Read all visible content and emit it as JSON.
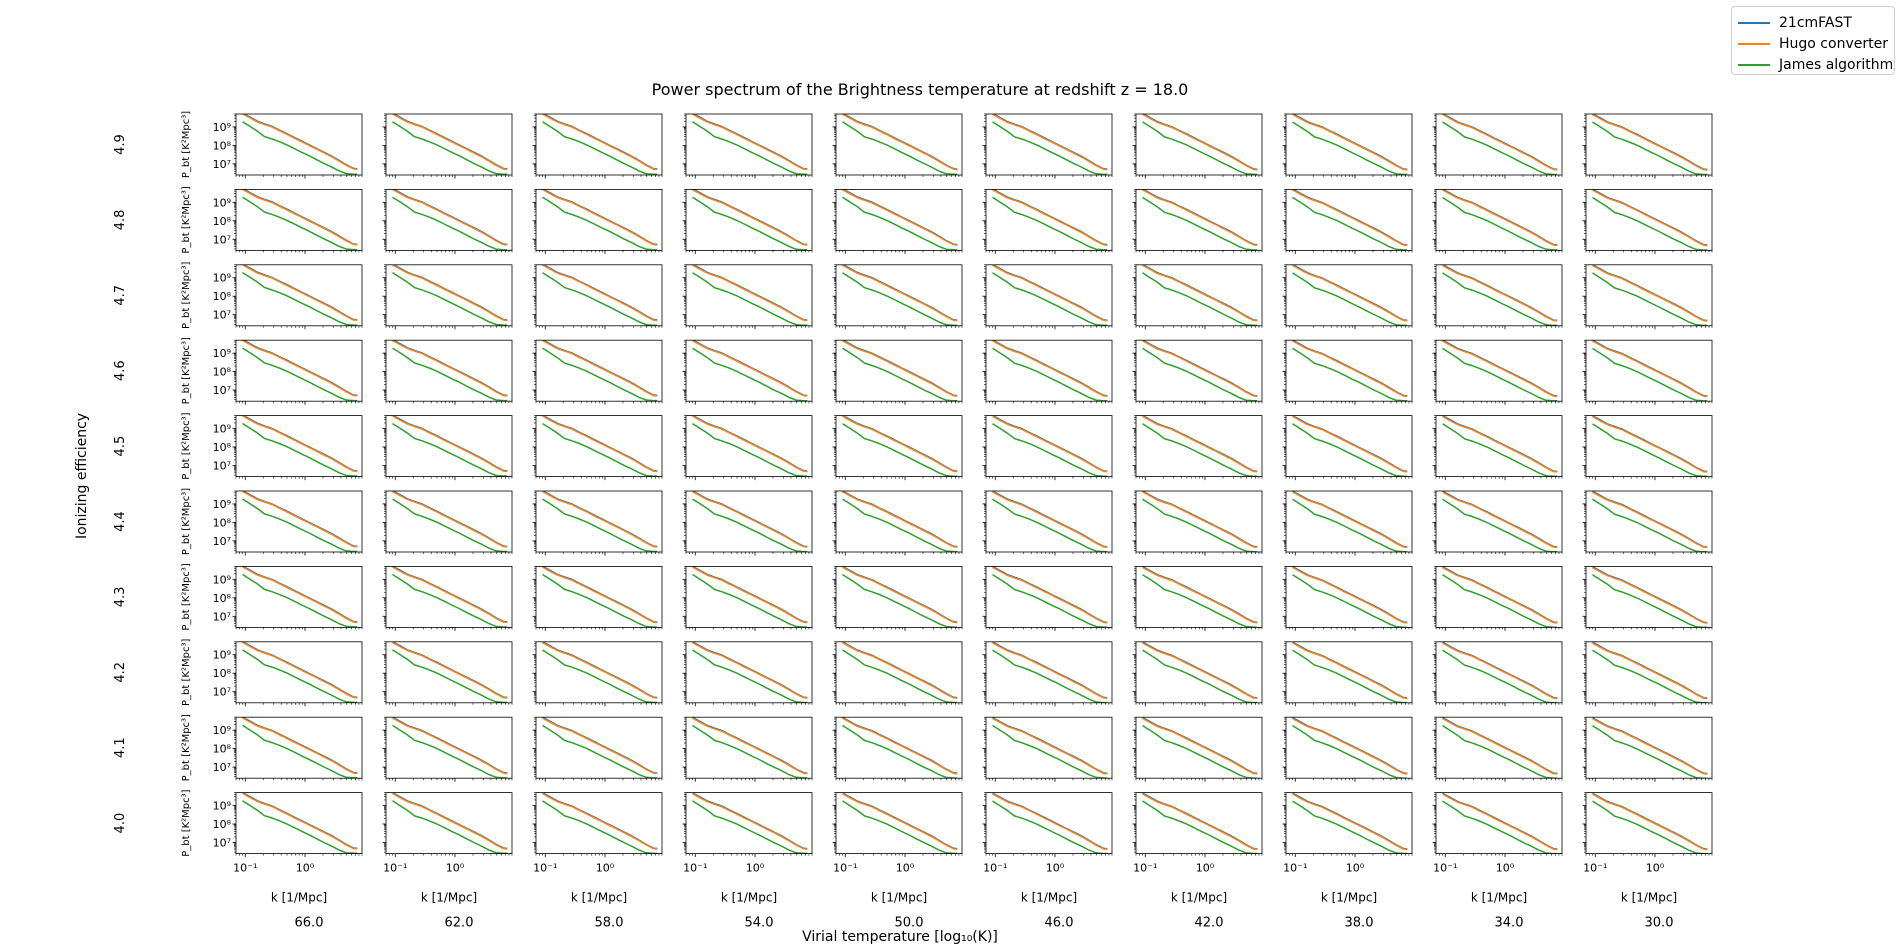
{
  "title": "Power spectrum of the Brightness temperature at redshift z = 18.0",
  "row_axis_label": "Ionizing efficiency",
  "col_axis_label": "Virial temperature [log₁₀(K)]",
  "legend": [
    {
      "label": "21cmFAST",
      "color": "#1f77b4"
    },
    {
      "label": "Hugo converter",
      "color": "#ff7f0e"
    },
    {
      "label": "James algorithm",
      "color": "#2ca02c"
    }
  ],
  "chart_data": {
    "type": "line",
    "layout": "grid of small multiples, rows = ionizing efficiency, columns = virial temperature, legend at top-right",
    "rows": [
      "4.9",
      "4.8",
      "4.7",
      "4.6",
      "4.5",
      "4.4",
      "4.3",
      "4.2",
      "4.1",
      "4.0"
    ],
    "columns": [
      "66.0",
      "62.0",
      "58.0",
      "54.0",
      "50.0",
      "46.0",
      "42.0",
      "38.0",
      "34.0",
      "30.0"
    ],
    "xlabel": "k [1/Mpc]",
    "ylabel": "P_bt [K²Mpc³]",
    "xscale": "log",
    "yscale": "log",
    "xlim": [
      0.07,
      9
    ],
    "ylim": [
      2500000,
      5000000000
    ],
    "xticks": [
      0.1,
      1
    ],
    "xtick_labels": [
      "10⁻¹",
      "10⁰"
    ],
    "yticks": [
      10000000,
      100000000,
      1000000000
    ],
    "ytick_labels": [
      "10⁷",
      "10⁸",
      "10⁹"
    ],
    "grid": false,
    "k": [
      0.09,
      0.12,
      0.16,
      0.21,
      0.28,
      0.37,
      0.5,
      0.66,
      0.88,
      1.17,
      1.56,
      2.07,
      2.76,
      3.67,
      4.88,
      6.5,
      7.5
    ],
    "series": [
      {
        "name": "21cmFAST",
        "color": "#1f77b4",
        "values": [
          5000000000,
          3000000000,
          1800000000,
          1300000000,
          950000000,
          600000000,
          380000000,
          240000000,
          150000000,
          95000000,
          60000000,
          38000000,
          24000000,
          14000000,
          8000000,
          5000000,
          4800000
        ]
      },
      {
        "name": "Hugo converter",
        "color": "#ff7f0e",
        "values": [
          4500000000,
          2700000000,
          1650000000,
          1200000000,
          880000000,
          560000000,
          350000000,
          220000000,
          140000000,
          88000000,
          56000000,
          35000000,
          22000000,
          13000000,
          7500000,
          4700000,
          4500000
        ]
      },
      {
        "name": "James algorithm",
        "color": "#2ca02c",
        "values": [
          1800000000,
          1000000000,
          550000000,
          280000000,
          210000000,
          150000000,
          100000000,
          64000000,
          40000000,
          26000000,
          16000000,
          10000000,
          6500000,
          4000000,
          2800000,
          2600000,
          2600000
        ]
      }
    ]
  }
}
